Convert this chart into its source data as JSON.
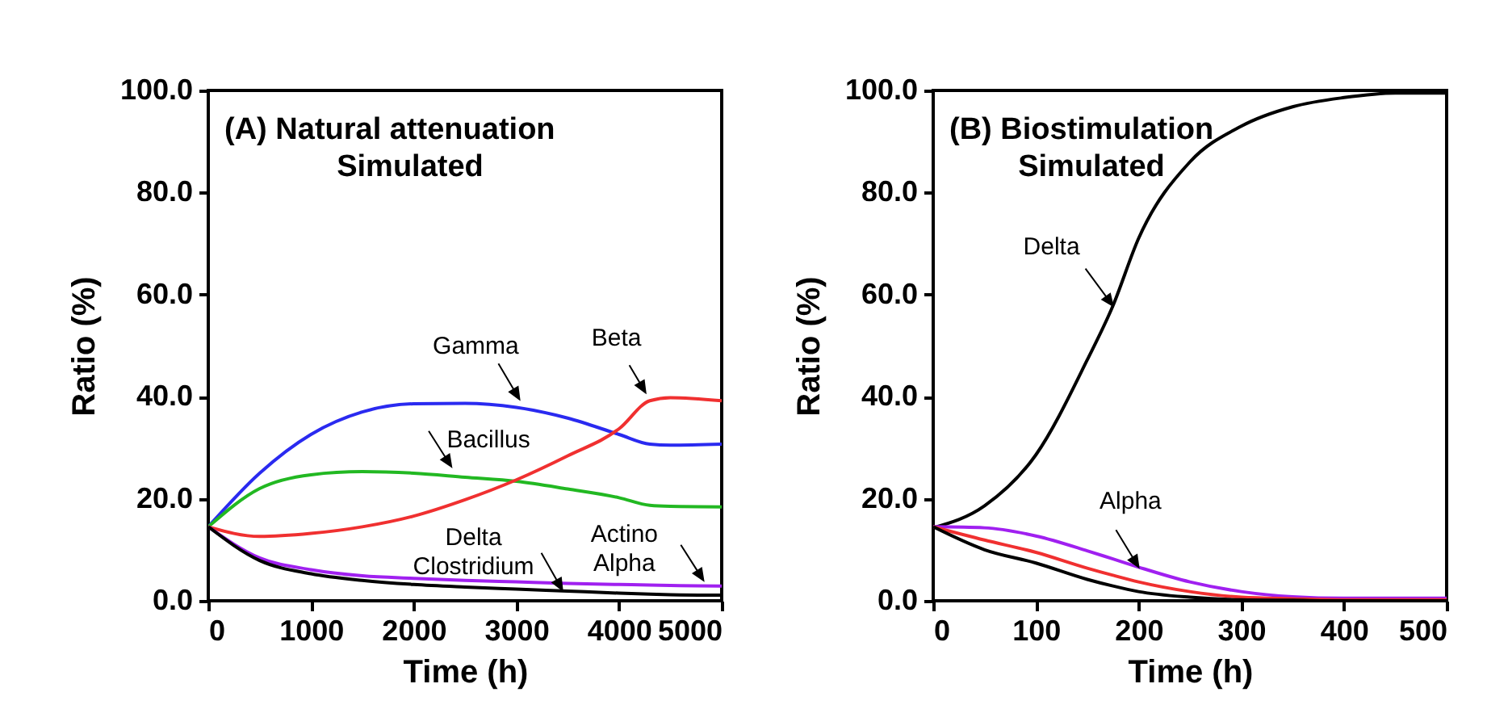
{
  "chart_data": [
    {
      "type": "line",
      "title": "(A) Natural attenuation",
      "subtitle": "Simulated",
      "xlabel": "Time (h)",
      "ylabel": "Ratio (%)",
      "x": [
        0,
        500,
        1000,
        1500,
        2000,
        2500,
        3000,
        3500,
        4000,
        4300,
        4500,
        5000
      ],
      "series": [
        {
          "color": "#2a2af0",
          "values": [
            14.5,
            25,
            32.6,
            37,
            38.6,
            38.7,
            37.9,
            35.8,
            32.6,
            30.7,
            30.5,
            30.7
          ]
        },
        {
          "color": "#22b822",
          "values": [
            14.5,
            22,
            24.7,
            25.3,
            25,
            24.2,
            23.4,
            21.9,
            20.2,
            18.7,
            18.5,
            18.4
          ]
        },
        {
          "color": "#f03030",
          "values": [
            14.5,
            12.6,
            13.2,
            14.5,
            16.6,
            19.8,
            23.7,
            28.4,
            33.7,
            39.2,
            39.8,
            39.2
          ]
        },
        {
          "color": "#a020f0",
          "values": [
            14.5,
            8.4,
            6.1,
            4.9,
            4.4,
            4,
            3.7,
            3.4,
            3.2,
            3.1,
            3,
            2.9
          ]
        },
        {
          "color": "#000000",
          "values": [
            14.5,
            7.9,
            5.3,
            4,
            3.2,
            2.7,
            2.3,
            1.9,
            1.5,
            1.3,
            1.2,
            1.1
          ]
        }
      ],
      "annotations": [
        {
          "text": "Gamma",
          "x": 3030,
          "y": 39.5
        },
        {
          "text": "Beta",
          "x": 4258,
          "y": 40.8
        },
        {
          "text": "Bacillus",
          "x": 2367,
          "y": 26.3
        },
        {
          "text": "Actino\nAlpha",
          "x": 4822,
          "y": 4
        },
        {
          "text": "Delta\nClostridium",
          "x": 3448,
          "y": 2.1
        }
      ],
      "xlim": [
        0,
        5000
      ],
      "xticks": [
        0,
        1000,
        2000,
        3000,
        4000,
        5000
      ],
      "ylim": [
        0,
        100
      ],
      "yticks": [
        {
          "value": 0,
          "label": "0.0"
        },
        {
          "value": 20,
          "label": "20.0"
        },
        {
          "value": 40,
          "label": "40.0"
        },
        {
          "value": 60,
          "label": "60.0"
        },
        {
          "value": 80,
          "label": "80.0"
        },
        {
          "value": 100,
          "label": "100.0"
        }
      ]
    },
    {
      "type": "line",
      "title": "(B) Biostimulation",
      "subtitle": "Simulated",
      "xlabel": "Time (h)",
      "ylabel": "Ratio (%)",
      "x": [
        0,
        50,
        100,
        150,
        175,
        200,
        250,
        300,
        350,
        400,
        450,
        500
      ],
      "series": [
        {
          "color": "#000000",
          "values": [
            14.3,
            18.6,
            28.6,
            47.2,
            57.8,
            71,
            86,
            93,
            96.8,
            98.6,
            99.5,
            99.5
          ]
        },
        {
          "color": "#a020f0",
          "values": [
            14.5,
            14.3,
            12.7,
            9.8,
            8.2,
            6.6,
            3.7,
            1.8,
            0.8,
            0.5,
            0.5,
            0.5
          ]
        },
        {
          "color": "#f03030",
          "values": [
            14.5,
            11.9,
            9.5,
            6.4,
            5,
            3.7,
            1.8,
            0.7,
            0.4,
            0.2,
            0.2,
            0.2
          ]
        },
        {
          "color": "#000000",
          "values": [
            14.5,
            10,
            7.4,
            4.2,
            2.9,
            1.8,
            0.7,
            0.2,
            0.1,
            0,
            0,
            0
          ]
        }
      ],
      "annotations": [
        {
          "text": "Delta",
          "x": 175,
          "y": 57.8
        },
        {
          "text": "Alpha",
          "x": 200,
          "y": 6.6
        }
      ],
      "xlim": [
        0,
        500
      ],
      "xticks": [
        0,
        100,
        200,
        300,
        400,
        500
      ],
      "ylim": [
        0,
        100
      ],
      "yticks": [
        {
          "value": 0,
          "label": "0.0"
        },
        {
          "value": 20,
          "label": "20.0"
        },
        {
          "value": 40,
          "label": "40.0"
        },
        {
          "value": 60,
          "label": "60.0"
        },
        {
          "value": 80,
          "label": "80.0"
        },
        {
          "value": 100,
          "label": "100.0"
        }
      ]
    }
  ]
}
